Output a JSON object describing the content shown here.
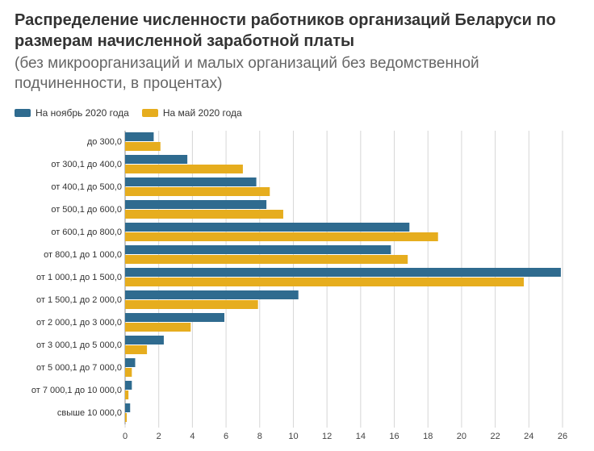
{
  "chart_data": {
    "type": "bar",
    "orientation": "horizontal",
    "title": "Распределение численности работников организаций Беларуси по размерам начисленной заработной платы",
    "subtitle": "(без микроорганизаций и малых организаций без ведомственной подчиненности, в процентах)",
    "categories": [
      "до 300,0",
      "от 300,1 до 400,0",
      "от 400,1 до 500,0",
      "от 500,1 до 600,0",
      "от 600,1 до 800,0",
      "от 800,1 до 1 000,0",
      "от 1 000,1 до 1 500,0",
      "от 1 500,1 до 2 000,0",
      "от 2 000,1 до 3 000,0",
      "от 3 000,1 до 5 000,0",
      "от 5 000,1 до 7 000,0",
      "от 7 000,1 до 10 000,0",
      "свыше 10 000,0"
    ],
    "series": [
      {
        "name": "На ноябрь 2020 года",
        "color": "#2f6b8f",
        "values": [
          1.7,
          3.7,
          7.8,
          8.4,
          16.9,
          15.8,
          25.9,
          10.3,
          5.9,
          2.3,
          0.6,
          0.4,
          0.3
        ]
      },
      {
        "name": "На май 2020 года",
        "color": "#e6ad1e",
        "values": [
          2.1,
          7.0,
          8.6,
          9.4,
          18.6,
          16.8,
          23.7,
          7.9,
          3.9,
          1.3,
          0.4,
          0.2,
          0.1
        ]
      }
    ],
    "xlim": [
      0,
      26
    ],
    "xticks": [
      0,
      2,
      4,
      6,
      8,
      10,
      12,
      14,
      16,
      18,
      20,
      22,
      24,
      26
    ],
    "grid": true,
    "legend_position": "top-left"
  }
}
